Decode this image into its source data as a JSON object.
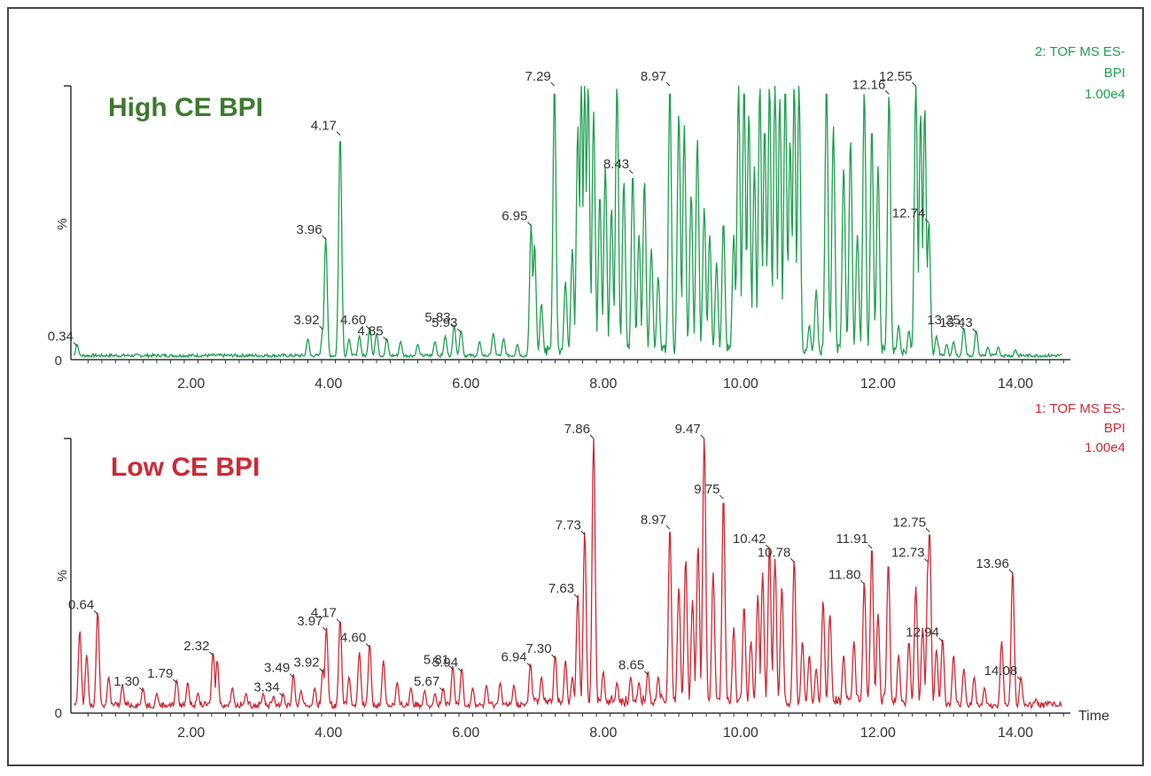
{
  "chart_data": [
    {
      "type": "line",
      "title": "High CE BPI",
      "trace_id": [
        "2: TOF MS ES-",
        "BPI",
        "1.00e4"
      ],
      "ylabel": "%",
      "xlabel": "",
      "xlim": [
        0.25,
        14.8
      ],
      "ylim": [
        0,
        100
      ],
      "x_ticks": [
        "2.00",
        "4.00",
        "6.00",
        "8.00",
        "10.00",
        "12.00",
        "14.00"
      ],
      "y_ticks": [
        "0"
      ],
      "color": "#1f9e50",
      "title_color": "#3c7a2e",
      "baseline": 1.5,
      "peaks": [
        {
          "x": 0.34,
          "y": 5,
          "label": "0.34"
        },
        {
          "x": 3.7,
          "y": 7
        },
        {
          "x": 3.92,
          "y": 11,
          "label": "3.92"
        },
        {
          "x": 3.96,
          "y": 44,
          "label": "3.96"
        },
        {
          "x": 4.17,
          "y": 82,
          "label": "4.17"
        },
        {
          "x": 4.3,
          "y": 7
        },
        {
          "x": 4.45,
          "y": 8
        },
        {
          "x": 4.6,
          "y": 11,
          "label": "4.60"
        },
        {
          "x": 4.7,
          "y": 9
        },
        {
          "x": 4.85,
          "y": 7,
          "label": "4.85"
        },
        {
          "x": 5.05,
          "y": 6
        },
        {
          "x": 5.3,
          "y": 5
        },
        {
          "x": 5.55,
          "y": 6
        },
        {
          "x": 5.7,
          "y": 8
        },
        {
          "x": 5.83,
          "y": 12,
          "label": "5.83"
        },
        {
          "x": 5.93,
          "y": 10,
          "label": "5.93"
        },
        {
          "x": 6.2,
          "y": 6
        },
        {
          "x": 6.4,
          "y": 9
        },
        {
          "x": 6.55,
          "y": 7
        },
        {
          "x": 6.75,
          "y": 5
        },
        {
          "x": 6.95,
          "y": 49,
          "label": "6.95"
        },
        {
          "x": 7.0,
          "y": 42
        },
        {
          "x": 7.1,
          "y": 20
        },
        {
          "x": 7.29,
          "y": 100,
          "label": "7.29"
        },
        {
          "x": 7.45,
          "y": 28
        },
        {
          "x": 7.55,
          "y": 40
        },
        {
          "x": 7.63,
          "y": 85
        },
        {
          "x": 7.68,
          "y": 100
        },
        {
          "x": 7.73,
          "y": 100
        },
        {
          "x": 7.78,
          "y": 100
        },
        {
          "x": 7.86,
          "y": 90
        },
        {
          "x": 7.95,
          "y": 60
        },
        {
          "x": 8.03,
          "y": 70
        },
        {
          "x": 8.12,
          "y": 55
        },
        {
          "x": 8.2,
          "y": 100
        },
        {
          "x": 8.3,
          "y": 65
        },
        {
          "x": 8.43,
          "y": 68,
          "label": "8.43"
        },
        {
          "x": 8.52,
          "y": 45
        },
        {
          "x": 8.6,
          "y": 65
        },
        {
          "x": 8.7,
          "y": 40
        },
        {
          "x": 8.8,
          "y": 30
        },
        {
          "x": 8.97,
          "y": 100,
          "label": "8.97"
        },
        {
          "x": 9.1,
          "y": 90
        },
        {
          "x": 9.18,
          "y": 85
        },
        {
          "x": 9.28,
          "y": 60
        },
        {
          "x": 9.37,
          "y": 80
        },
        {
          "x": 9.47,
          "y": 55
        },
        {
          "x": 9.55,
          "y": 45
        },
        {
          "x": 9.65,
          "y": 35
        },
        {
          "x": 9.75,
          "y": 50
        },
        {
          "x": 9.9,
          "y": 45
        },
        {
          "x": 9.97,
          "y": 100
        },
        {
          "x": 10.05,
          "y": 100
        },
        {
          "x": 10.12,
          "y": 90
        },
        {
          "x": 10.2,
          "y": 70
        },
        {
          "x": 10.28,
          "y": 100
        },
        {
          "x": 10.35,
          "y": 85
        },
        {
          "x": 10.42,
          "y": 100
        },
        {
          "x": 10.5,
          "y": 100
        },
        {
          "x": 10.57,
          "y": 95
        },
        {
          "x": 10.65,
          "y": 100
        },
        {
          "x": 10.72,
          "y": 80
        },
        {
          "x": 10.78,
          "y": 100
        },
        {
          "x": 10.85,
          "y": 100
        },
        {
          "x": 11.0,
          "y": 12
        },
        {
          "x": 11.1,
          "y": 25
        },
        {
          "x": 11.25,
          "y": 100
        },
        {
          "x": 11.35,
          "y": 85
        },
        {
          "x": 11.5,
          "y": 70
        },
        {
          "x": 11.6,
          "y": 80
        },
        {
          "x": 11.7,
          "y": 45
        },
        {
          "x": 11.8,
          "y": 98
        },
        {
          "x": 11.91,
          "y": 85
        },
        {
          "x": 12.0,
          "y": 70
        },
        {
          "x": 12.16,
          "y": 97,
          "label": "12.16"
        },
        {
          "x": 12.3,
          "y": 12
        },
        {
          "x": 12.45,
          "y": 10
        },
        {
          "x": 12.55,
          "y": 100,
          "label": "12.55"
        },
        {
          "x": 12.62,
          "y": 90
        },
        {
          "x": 12.68,
          "y": 92
        },
        {
          "x": 12.74,
          "y": 50,
          "label": "12.74"
        },
        {
          "x": 12.85,
          "y": 8
        },
        {
          "x": 13.0,
          "y": 5
        },
        {
          "x": 13.1,
          "y": 6
        },
        {
          "x": 13.25,
          "y": 11,
          "label": "13.25"
        },
        {
          "x": 13.43,
          "y": 10,
          "label": "13.43"
        },
        {
          "x": 13.6,
          "y": 4
        },
        {
          "x": 13.75,
          "y": 4
        },
        {
          "x": 14.0,
          "y": 3
        }
      ]
    },
    {
      "type": "line",
      "title": "Low CE BPI",
      "trace_id": [
        "1: TOF MS ES-",
        "BPI",
        "1.00e4"
      ],
      "ylabel": "%",
      "xlabel": "Time",
      "xlim": [
        0.25,
        14.8
      ],
      "ylim": [
        0,
        100
      ],
      "x_ticks": [
        "2.00",
        "4.00",
        "6.00",
        "8.00",
        "10.00",
        "12.00",
        "14.00"
      ],
      "y_ticks": [
        "0"
      ],
      "color": "#cc2a35",
      "title_color": "#cc2a35",
      "baseline": 3,
      "peaks": [
        {
          "x": 0.38,
          "y": 29
        },
        {
          "x": 0.48,
          "y": 20
        },
        {
          "x": 0.64,
          "y": 36,
          "label": "0.64"
        },
        {
          "x": 0.8,
          "y": 12
        },
        {
          "x": 1.0,
          "y": 9
        },
        {
          "x": 1.3,
          "y": 8,
          "label": "1.30"
        },
        {
          "x": 1.5,
          "y": 6
        },
        {
          "x": 1.79,
          "y": 11,
          "label": "1.79"
        },
        {
          "x": 1.95,
          "y": 10
        },
        {
          "x": 2.1,
          "y": 6
        },
        {
          "x": 2.32,
          "y": 21,
          "label": "2.32"
        },
        {
          "x": 2.38,
          "y": 18
        },
        {
          "x": 2.6,
          "y": 8
        },
        {
          "x": 2.8,
          "y": 6
        },
        {
          "x": 3.05,
          "y": 6
        },
        {
          "x": 3.2,
          "y": 5
        },
        {
          "x": 3.34,
          "y": 6,
          "label": "3.34"
        },
        {
          "x": 3.49,
          "y": 13,
          "label": "3.49"
        },
        {
          "x": 3.6,
          "y": 7
        },
        {
          "x": 3.8,
          "y": 8
        },
        {
          "x": 3.92,
          "y": 15,
          "label": "3.92"
        },
        {
          "x": 3.97,
          "y": 30,
          "label": "3.97"
        },
        {
          "x": 4.17,
          "y": 33,
          "label": "4.17"
        },
        {
          "x": 4.3,
          "y": 12
        },
        {
          "x": 4.45,
          "y": 21
        },
        {
          "x": 4.6,
          "y": 24,
          "label": "4.60"
        },
        {
          "x": 4.8,
          "y": 18
        },
        {
          "x": 5.0,
          "y": 10
        },
        {
          "x": 5.2,
          "y": 8
        },
        {
          "x": 5.4,
          "y": 7
        },
        {
          "x": 5.55,
          "y": 6
        },
        {
          "x": 5.67,
          "y": 8,
          "label": "5.67"
        },
        {
          "x": 5.81,
          "y": 16,
          "label": "5.81"
        },
        {
          "x": 5.94,
          "y": 15,
          "label": "5.94"
        },
        {
          "x": 6.1,
          "y": 8
        },
        {
          "x": 6.3,
          "y": 9
        },
        {
          "x": 6.5,
          "y": 10
        },
        {
          "x": 6.7,
          "y": 9
        },
        {
          "x": 6.94,
          "y": 17,
          "label": "6.94"
        },
        {
          "x": 7.1,
          "y": 12
        },
        {
          "x": 7.3,
          "y": 20,
          "label": "7.30"
        },
        {
          "x": 7.45,
          "y": 18
        },
        {
          "x": 7.55,
          "y": 12
        },
        {
          "x": 7.63,
          "y": 42,
          "label": "7.63"
        },
        {
          "x": 7.73,
          "y": 65,
          "label": "7.73"
        },
        {
          "x": 7.86,
          "y": 100,
          "label": "7.86"
        },
        {
          "x": 8.0,
          "y": 14
        },
        {
          "x": 8.2,
          "y": 10
        },
        {
          "x": 8.4,
          "y": 12
        },
        {
          "x": 8.52,
          "y": 10
        },
        {
          "x": 8.65,
          "y": 14,
          "label": "8.65"
        },
        {
          "x": 8.8,
          "y": 12
        },
        {
          "x": 8.97,
          "y": 67,
          "label": "8.97"
        },
        {
          "x": 9.1,
          "y": 45
        },
        {
          "x": 9.2,
          "y": 55
        },
        {
          "x": 9.3,
          "y": 40
        },
        {
          "x": 9.38,
          "y": 60
        },
        {
          "x": 9.47,
          "y": 100,
          "label": "9.47"
        },
        {
          "x": 9.6,
          "y": 50
        },
        {
          "x": 9.75,
          "y": 78,
          "label": "9.75"
        },
        {
          "x": 9.9,
          "y": 30
        },
        {
          "x": 10.05,
          "y": 38
        },
        {
          "x": 10.15,
          "y": 25
        },
        {
          "x": 10.25,
          "y": 42
        },
        {
          "x": 10.32,
          "y": 50
        },
        {
          "x": 10.42,
          "y": 60,
          "label": "10.42"
        },
        {
          "x": 10.5,
          "y": 55
        },
        {
          "x": 10.6,
          "y": 45
        },
        {
          "x": 10.78,
          "y": 55,
          "label": "10.78"
        },
        {
          "x": 10.9,
          "y": 25
        },
        {
          "x": 11.0,
          "y": 20
        },
        {
          "x": 11.1,
          "y": 15
        },
        {
          "x": 11.2,
          "y": 40
        },
        {
          "x": 11.3,
          "y": 35
        },
        {
          "x": 11.5,
          "y": 20
        },
        {
          "x": 11.65,
          "y": 25
        },
        {
          "x": 11.8,
          "y": 47,
          "label": "11.80"
        },
        {
          "x": 11.91,
          "y": 60,
          "label": "11.91"
        },
        {
          "x": 12.0,
          "y": 35
        },
        {
          "x": 12.15,
          "y": 54
        },
        {
          "x": 12.3,
          "y": 20
        },
        {
          "x": 12.45,
          "y": 25
        },
        {
          "x": 12.55,
          "y": 45
        },
        {
          "x": 12.65,
          "y": 30
        },
        {
          "x": 12.73,
          "y": 55,
          "label": "12.73"
        },
        {
          "x": 12.75,
          "y": 66,
          "label": "12.75"
        },
        {
          "x": 12.85,
          "y": 22
        },
        {
          "x": 12.94,
          "y": 26,
          "label": "12.94"
        },
        {
          "x": 13.1,
          "y": 20
        },
        {
          "x": 13.25,
          "y": 15
        },
        {
          "x": 13.4,
          "y": 12
        },
        {
          "x": 13.55,
          "y": 8
        },
        {
          "x": 13.8,
          "y": 25
        },
        {
          "x": 13.96,
          "y": 51,
          "label": "13.96"
        },
        {
          "x": 14.08,
          "y": 12,
          "label": "14.08"
        },
        {
          "x": 14.3,
          "y": 4
        },
        {
          "x": 14.5,
          "y": 3
        }
      ]
    }
  ]
}
